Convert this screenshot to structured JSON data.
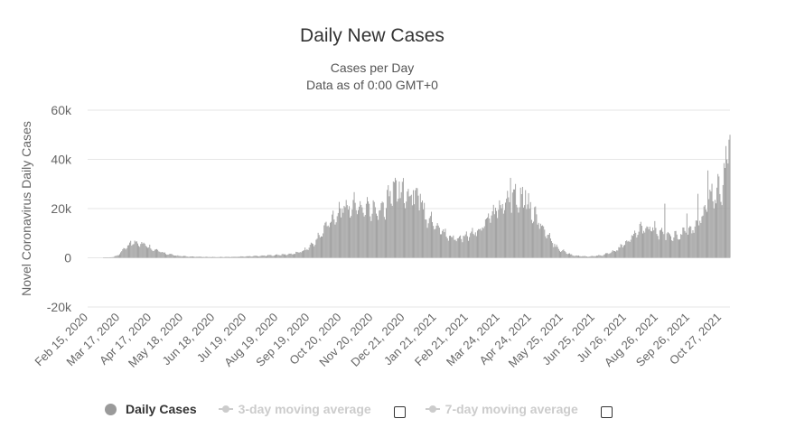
{
  "chart_data": {
    "type": "bar",
    "title": "Daily New Cases",
    "subtitle": [
      "Cases per Day",
      "Data as of 0:00 GMT+0"
    ],
    "ylabel": "Novel Coronavirus Daily Cases",
    "xlabel": "",
    "ylim": [
      -20000,
      60000
    ],
    "y_ticks": [
      60000,
      40000,
      20000,
      0,
      -20000
    ],
    "y_tick_labels": [
      "60k",
      "40k",
      "20k",
      "0",
      "-20k"
    ],
    "grid": true,
    "x_tick_labels": [
      "Feb 15, 2020",
      "Mar 17, 2020",
      "Apr 17, 2020",
      "May 18, 2020",
      "Jun 18, 2020",
      "Jul 19, 2020",
      "Aug 19, 2020",
      "Sep 19, 2020",
      "Oct 20, 2020",
      "Nov 20, 2020",
      "Dec 21, 2020",
      "Jan 21, 2021",
      "Feb 21, 2021",
      "Mar 24, 2021",
      "Apr 24, 2021",
      "May 25, 2021",
      "Jun 25, 2021",
      "Jul 26, 2021",
      "Aug 26, 2021",
      "Sep 26, 2021",
      "Oct 27, 2021"
    ],
    "x_start": "2020-02-15",
    "x_end": "2021-11-17",
    "legend_position": "bottom",
    "series": [
      {
        "name": "Daily Cases",
        "color": "#9a9a9a",
        "visible": true,
        "daily_points": [
          [
            "2020-02-15",
            0
          ],
          [
            "2020-03-01",
            0
          ],
          [
            "2020-03-12",
            300
          ],
          [
            "2020-03-17",
            1200
          ],
          [
            "2020-03-22",
            3500
          ],
          [
            "2020-03-28",
            5500
          ],
          [
            "2020-04-02",
            6500
          ],
          [
            "2020-04-08",
            6000
          ],
          [
            "2020-04-14",
            5000
          ],
          [
            "2020-04-20",
            3500
          ],
          [
            "2020-04-27",
            2500
          ],
          [
            "2020-05-05",
            1500
          ],
          [
            "2020-05-15",
            800
          ],
          [
            "2020-05-25",
            500
          ],
          [
            "2020-06-10",
            350
          ],
          [
            "2020-06-25",
            300
          ],
          [
            "2020-07-10",
            400
          ],
          [
            "2020-07-25",
            600
          ],
          [
            "2020-08-10",
            900
          ],
          [
            "2020-08-25",
            1200
          ],
          [
            "2020-09-05",
            1500
          ],
          [
            "2020-09-15",
            2500
          ],
          [
            "2020-09-22",
            4000
          ],
          [
            "2020-09-28",
            6000
          ],
          [
            "2020-10-05",
            9500
          ],
          [
            "2020-10-12",
            14000
          ],
          [
            "2020-10-20",
            18000
          ],
          [
            "2020-10-28",
            20000
          ],
          [
            "2020-11-05",
            21000
          ],
          [
            "2020-11-12",
            21000
          ],
          [
            "2020-11-20",
            20000
          ],
          [
            "2020-11-28",
            19500
          ],
          [
            "2020-12-05",
            21000
          ],
          [
            "2020-12-12",
            24000
          ],
          [
            "2020-12-18",
            27000
          ],
          [
            "2020-12-24",
            26000
          ],
          [
            "2020-12-31",
            25000
          ],
          [
            "2021-01-06",
            24500
          ],
          [
            "2021-01-12",
            22000
          ],
          [
            "2021-01-19",
            17000
          ],
          [
            "2021-01-26",
            14000
          ],
          [
            "2021-02-03",
            11000
          ],
          [
            "2021-02-10",
            8500
          ],
          [
            "2021-02-18",
            8000
          ],
          [
            "2021-02-26",
            8500
          ],
          [
            "2021-03-05",
            9500
          ],
          [
            "2021-03-12",
            11000
          ],
          [
            "2021-03-20",
            16000
          ],
          [
            "2021-03-28",
            19000
          ],
          [
            "2021-04-05",
            21000
          ],
          [
            "2021-04-12",
            24000
          ],
          [
            "2021-04-18",
            25500
          ],
          [
            "2021-04-25",
            24000
          ],
          [
            "2021-05-02",
            20000
          ],
          [
            "2021-05-10",
            15000
          ],
          [
            "2021-05-17",
            10000
          ],
          [
            "2021-05-24",
            6000
          ],
          [
            "2021-05-31",
            3500
          ],
          [
            "2021-06-07",
            2000
          ],
          [
            "2021-06-14",
            1000
          ],
          [
            "2021-06-21",
            700
          ],
          [
            "2021-06-28",
            500
          ],
          [
            "2021-07-05",
            700
          ],
          [
            "2021-07-12",
            1000
          ],
          [
            "2021-07-19",
            1800
          ],
          [
            "2021-07-26",
            3000
          ],
          [
            "2021-08-02",
            5000
          ],
          [
            "2021-08-10",
            8000
          ],
          [
            "2021-08-18",
            11000
          ],
          [
            "2021-08-26",
            12500
          ],
          [
            "2021-09-02",
            11500
          ],
          [
            "2021-09-10",
            10000
          ],
          [
            "2021-09-18",
            9000
          ],
          [
            "2021-09-26",
            9000
          ],
          [
            "2021-10-03",
            10000
          ],
          [
            "2021-10-10",
            11500
          ],
          [
            "2021-10-18",
            15000
          ],
          [
            "2021-10-24",
            20000
          ],
          [
            "2021-10-30",
            24000
          ],
          [
            "2021-11-05",
            27000
          ],
          [
            "2021-11-11",
            33000
          ],
          [
            "2021-11-17",
            43000
          ]
        ],
        "spikes": [
          [
            "2020-03-29",
            6900
          ],
          [
            "2020-04-04",
            6700
          ],
          [
            "2020-10-30",
            23500
          ],
          [
            "2020-11-06",
            23500
          ],
          [
            "2020-11-13",
            23000
          ],
          [
            "2020-12-11",
            29500
          ],
          [
            "2020-12-16",
            31000
          ],
          [
            "2020-12-19",
            31500
          ],
          [
            "2020-12-22",
            31000
          ],
          [
            "2020-12-31",
            28000
          ],
          [
            "2021-01-05",
            27500
          ],
          [
            "2021-01-12",
            26000
          ],
          [
            "2021-04-12",
            32500
          ],
          [
            "2021-04-17",
            30000
          ],
          [
            "2021-04-22",
            28500
          ],
          [
            "2021-04-27",
            27500
          ],
          [
            "2021-09-13",
            22000
          ],
          [
            "2021-10-05",
            18000
          ],
          [
            "2021-10-16",
            26000
          ],
          [
            "2021-10-26",
            35500
          ],
          [
            "2021-11-04",
            28500
          ],
          [
            "2021-11-16",
            48000
          ],
          [
            "2021-11-17",
            50000
          ]
        ]
      },
      {
        "name": "3-day moving average",
        "visible": false
      },
      {
        "name": "7-day moving average",
        "visible": false
      }
    ]
  },
  "legend": {
    "daily_cases": "Daily Cases",
    "three_day": "3-day moving average",
    "seven_day": "7-day moving average"
  },
  "colors": {
    "bar": "#9a9a9a",
    "grid": "#e6e6e6",
    "axis_text": "#666666",
    "legend_hidden": "#cccccc"
  }
}
